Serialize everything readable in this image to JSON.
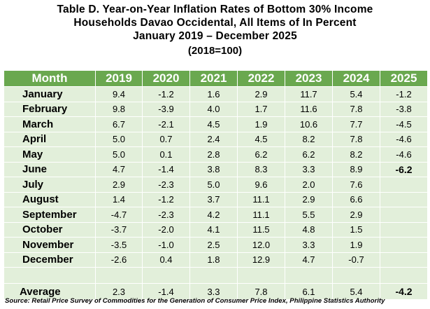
{
  "title": {
    "line1": "Table D. Year-on-Year Inflation Rates of Bottom 30% Income",
    "line2": "Households Davao Occidental, All Items of In Percent",
    "line3": "January 2019 – December 2025",
    "base": "(2018=100)"
  },
  "table": {
    "header": {
      "month": "Month",
      "years": [
        "2019",
        "2020",
        "2021",
        "2022",
        "2023",
        "2024",
        "2025"
      ]
    },
    "rows": [
      {
        "month": "January",
        "values": [
          "9.4",
          "-1.2",
          "1.6",
          "2.9",
          "11.7",
          "5.4",
          "-1.2"
        ]
      },
      {
        "month": "February",
        "values": [
          "9.8",
          "-3.9",
          "4.0",
          "1.7",
          "11.6",
          "7.8",
          "-3.8"
        ]
      },
      {
        "month": "March",
        "values": [
          "6.7",
          "-2.1",
          "4.5",
          "1.9",
          "10.6",
          "7.7",
          "-4.5"
        ]
      },
      {
        "month": "April",
        "values": [
          "5.0",
          "0.7",
          "2.4",
          "4.5",
          "8.2",
          "7.8",
          "-4.6"
        ]
      },
      {
        "month": "May",
        "values": [
          "5.0",
          "0.1",
          "2.8",
          "6.2",
          "6.2",
          "8.2",
          "-4.6"
        ]
      },
      {
        "month": "June",
        "values": [
          "4.7",
          "-1.4",
          "3.8",
          "8.3",
          "3.3",
          "8.9",
          "-6.2"
        ]
      },
      {
        "month": "July",
        "values": [
          "2.9",
          "-2.3",
          "5.0",
          "9.6",
          "2.0",
          "7.6",
          ""
        ]
      },
      {
        "month": "August",
        "values": [
          "1.4",
          "-1.2",
          "3.7",
          "11.1",
          "2.9",
          "6.6",
          ""
        ]
      },
      {
        "month": "September",
        "values": [
          "-4.7",
          "-2.3",
          "4.2",
          "11.1",
          "5.5",
          "2.9",
          ""
        ]
      },
      {
        "month": "October",
        "values": [
          "-3.7",
          "-2.0",
          "4.1",
          "11.5",
          "4.8",
          "1.5",
          ""
        ]
      },
      {
        "month": "November",
        "values": [
          "-3.5",
          "-1.0",
          "2.5",
          "12.0",
          "3.3",
          "1.9",
          ""
        ]
      },
      {
        "month": "December",
        "values": [
          "-2.6",
          "0.4",
          "1.8",
          "12.9",
          "4.7",
          "-0.7",
          ""
        ]
      }
    ],
    "average": {
      "label": "Average",
      "values": [
        "2.3",
        "-1.4",
        "3.3",
        "7.8",
        "6.1",
        "5.4",
        "-4.2"
      ]
    }
  },
  "source": "Source: Retail Price Survey of Commodities for the Generation of Consumer Price Index, Philippine Statistics Authority",
  "colors": {
    "header_bg": "#6aa84f",
    "row_bg": "#e2efda",
    "header_text": "#ffffff"
  }
}
